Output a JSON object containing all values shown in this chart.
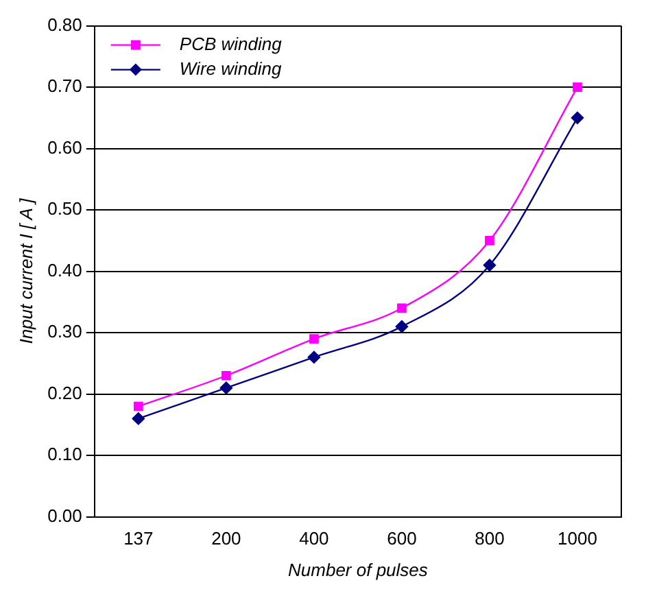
{
  "chart_data": {
    "type": "line",
    "xlabel": "Number of pulses",
    "ylabel": "Input current I [ A ]",
    "categories": [
      "137",
      "200",
      "400",
      "600",
      "800",
      "1000"
    ],
    "series": [
      {
        "name": "PCB winding",
        "color": "#ff00ff",
        "marker": "square",
        "values": [
          0.18,
          0.23,
          0.29,
          0.34,
          0.45,
          0.7
        ]
      },
      {
        "name": "Wire winding",
        "color": "#000080",
        "marker": "diamond",
        "values": [
          0.16,
          0.21,
          0.26,
          0.31,
          0.41,
          0.65
        ]
      }
    ],
    "ylim": [
      0,
      0.8
    ],
    "yticks": [
      {
        "value": 0,
        "label": "0.00"
      },
      {
        "value": 0.1,
        "label": "0.10"
      },
      {
        "value": 0.2,
        "label": "0.20"
      },
      {
        "value": 0.3,
        "label": "0.30"
      },
      {
        "value": 0.4,
        "label": "0.40"
      },
      {
        "value": 0.5,
        "label": "0.50"
      },
      {
        "value": 0.6,
        "label": "0.60"
      },
      {
        "value": 0.7,
        "label": "0.70"
      },
      {
        "value": 0.8,
        "label": "0.80"
      }
    ],
    "grid": "y",
    "legend": "top left",
    "line_style": "solid"
  }
}
